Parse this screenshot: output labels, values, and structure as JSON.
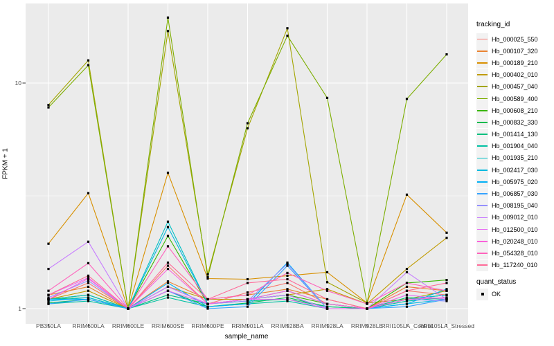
{
  "chart_data": {
    "type": "line",
    "xlabel": "sample_name",
    "ylabel": "FPKM + 1",
    "y_scale": "log10",
    "y_ticks": [
      1,
      10
    ],
    "y_minor_ticks": [
      3.162
    ],
    "ylim": [
      0.86,
      23
    ],
    "grid": "on",
    "categories": [
      "PB350LA",
      "RRIM600LA",
      "RRIM600LE",
      "RRIM600SE",
      "RRIM600PE",
      "RRIM901LA",
      "RRIM928BA",
      "RRIM928LA",
      "RRIM928LE",
      "RRII105LA_Control",
      "RRII105LA_Stressed"
    ],
    "series": [
      {
        "name": "Hb_000025_550",
        "color": "#F8766D",
        "values": [
          1.1,
          1.3,
          1.0,
          1.55,
          1.05,
          1.18,
          1.3,
          1.05,
          1.0,
          1.2,
          1.15
        ]
      },
      {
        "name": "Hb_000107_320",
        "color": "#EA8331",
        "values": [
          1.15,
          1.25,
          1.0,
          1.32,
          1.1,
          1.15,
          1.22,
          1.1,
          1.0,
          1.25,
          1.2
        ]
      },
      {
        "name": "Hb_000189_210",
        "color": "#D89000",
        "values": [
          1.94,
          3.25,
          1.0,
          4.0,
          1.36,
          1.35,
          1.4,
          1.45,
          1.06,
          3.2,
          2.17
        ]
      },
      {
        "name": "Hb_000402_010",
        "color": "#C09B00",
        "values": [
          1.1,
          1.2,
          1.0,
          1.25,
          1.1,
          1.1,
          1.15,
          1.22,
          1.05,
          1.5,
          2.06
        ]
      },
      {
        "name": "Hb_000457_040",
        "color": "#A3A500",
        "values": [
          8.0,
          12.6,
          1.0,
          17.0,
          1.42,
          6.3,
          17.5,
          1.31,
          1.06,
          1.1,
          1.2
        ]
      },
      {
        "name": "Hb_000589_400",
        "color": "#7CAE00",
        "values": [
          7.8,
          12.0,
          1.0,
          19.5,
          1.38,
          6.64,
          16.2,
          8.6,
          1.06,
          8.5,
          13.4
        ]
      },
      {
        "name": "Hb_000608_210",
        "color": "#39B600",
        "values": [
          1.1,
          1.15,
          1.0,
          2.1,
          1.05,
          1.1,
          1.15,
          1.05,
          1.0,
          1.3,
          1.34
        ]
      },
      {
        "name": "Hb_000832_330",
        "color": "#00BB4E",
        "values": [
          1.06,
          1.1,
          1.0,
          1.2,
          1.02,
          1.06,
          1.12,
          1.02,
          1.0,
          1.1,
          1.15
        ]
      },
      {
        "name": "Hb_001414_130",
        "color": "#00BF7D",
        "values": [
          1.1,
          1.12,
          1.0,
          1.15,
          1.05,
          1.08,
          1.1,
          1.02,
          1.0,
          1.12,
          1.1
        ]
      },
      {
        "name": "Hb_001904_040",
        "color": "#00C1A3",
        "values": [
          1.05,
          1.08,
          1.0,
          1.12,
          1.02,
          1.05,
          1.08,
          1.0,
          1.0,
          1.08,
          1.12
        ]
      },
      {
        "name": "Hb_001935_210",
        "color": "#00BFC4",
        "values": [
          1.1,
          1.15,
          1.0,
          2.43,
          1.05,
          1.1,
          1.2,
          1.05,
          1.0,
          1.1,
          1.15
        ]
      },
      {
        "name": "Hb_002417_030",
        "color": "#00BAE0",
        "values": [
          1.08,
          1.12,
          1.0,
          2.3,
          1.05,
          1.1,
          1.15,
          1.0,
          1.0,
          1.05,
          1.1
        ]
      },
      {
        "name": "Hb_005975_020",
        "color": "#00B0F6",
        "values": [
          1.1,
          1.1,
          1.0,
          1.3,
          1.02,
          1.05,
          1.6,
          1.0,
          1.0,
          1.05,
          1.22
        ]
      },
      {
        "name": "Hb_006857_030",
        "color": "#35A2FF",
        "values": [
          1.05,
          1.1,
          1.0,
          1.2,
          1.0,
          1.02,
          1.55,
          1.0,
          1.0,
          1.02,
          1.1
        ]
      },
      {
        "name": "Hb_008195_040",
        "color": "#9590FF",
        "values": [
          1.12,
          1.33,
          1.0,
          1.25,
          1.05,
          1.08,
          1.58,
          1.0,
          1.0,
          1.1,
          1.08
        ]
      },
      {
        "name": "Hb_009012_010",
        "color": "#C77CFF",
        "values": [
          1.5,
          1.98,
          1.0,
          1.25,
          1.05,
          1.1,
          1.15,
          1.0,
          1.0,
          1.45,
          1.1
        ]
      },
      {
        "name": "Hb_012500_010",
        "color": "#E76BF3",
        "values": [
          1.15,
          1.37,
          1.0,
          1.2,
          1.05,
          1.1,
          1.1,
          1.0,
          1.0,
          1.15,
          1.1
        ]
      },
      {
        "name": "Hb_020248_010",
        "color": "#FA62DB",
        "values": [
          1.1,
          1.36,
          1.0,
          1.5,
          1.05,
          1.1,
          1.2,
          1.05,
          1.0,
          1.1,
          1.12
        ]
      },
      {
        "name": "Hb_054328_010",
        "color": "#FF62BC",
        "values": [
          1.2,
          1.59,
          1.0,
          1.89,
          1.1,
          1.15,
          1.44,
          1.2,
          1.05,
          1.3,
          1.2
        ]
      },
      {
        "name": "Hb_117240_010",
        "color": "#FF6A98",
        "values": [
          1.15,
          1.4,
          1.0,
          1.6,
          1.1,
          1.3,
          1.35,
          1.1,
          1.0,
          1.2,
          1.3
        ]
      }
    ],
    "legend": {
      "position": "right",
      "series_title": "tracking_id",
      "status_title": "quant_status",
      "status_label": "OK"
    },
    "style": {
      "panel_bg": "#EBEBEB",
      "grid_color": "#FFFFFF",
      "point_color": "#000000",
      "axis_text_color": "#4D4D4D",
      "key_bg": "#F2F2F2"
    }
  }
}
